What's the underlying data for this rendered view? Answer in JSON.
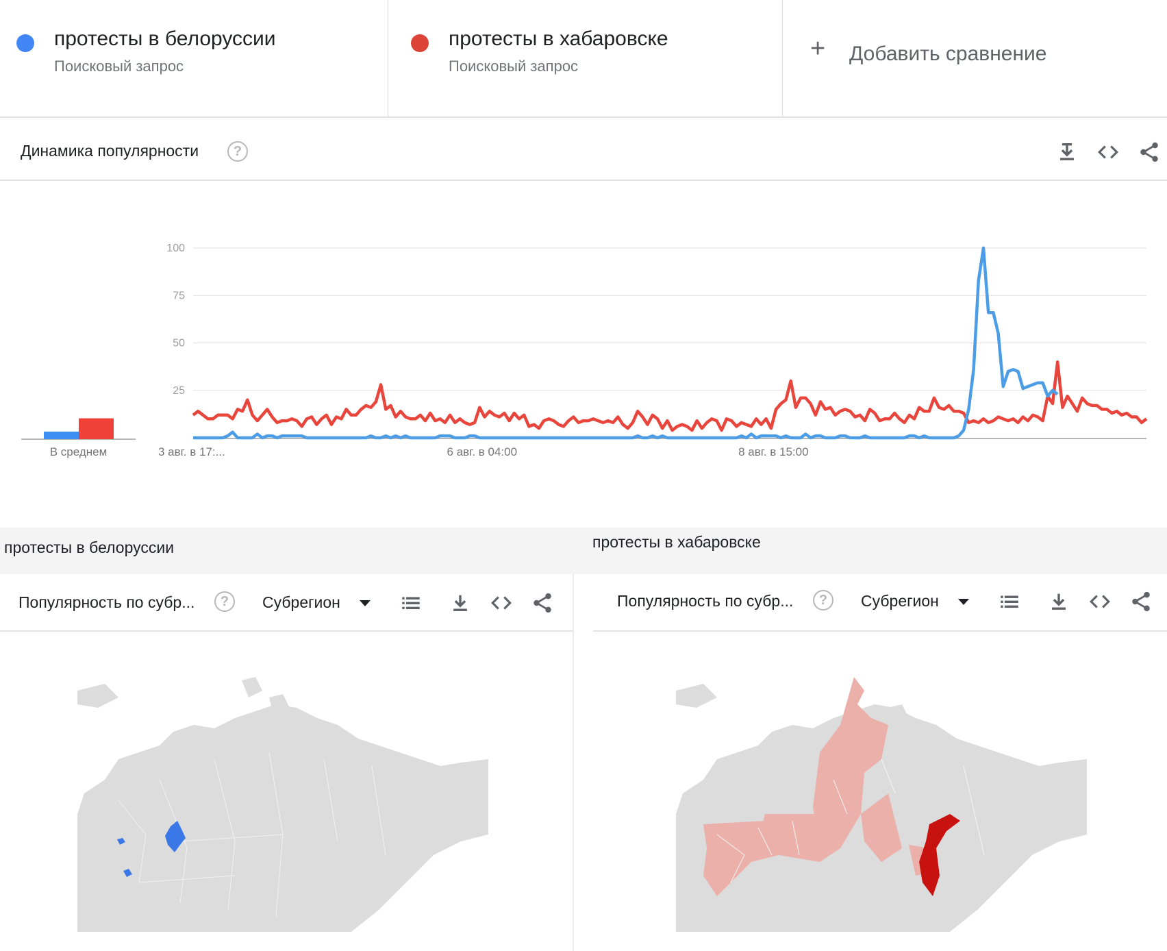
{
  "terms": [
    {
      "name": "протесты в белоруссии",
      "kind": "Поисковый запрос",
      "color": "#4285f4"
    },
    {
      "name": "протесты в хабаровске",
      "kind": "Поисковый запрос",
      "color": "#db4437"
    }
  ],
  "add_comparison": {
    "plus": "+",
    "label": "Добавить сравнение"
  },
  "trend_card": {
    "title": "Динамика популярности",
    "help": "?",
    "avg_label": "В среднем"
  },
  "icons": {
    "download": "download-icon",
    "embed": "embed-code-icon",
    "share": "share-icon",
    "list": "list-icon",
    "help": "help-icon"
  },
  "chart_data": {
    "type": "line",
    "title": "Динамика популярности",
    "ylim": [
      0,
      100
    ],
    "yticks": [
      25,
      50,
      75,
      100
    ],
    "x_tick_labels": [
      {
        "index": 0,
        "label": "3 авг. в 17:..."
      },
      {
        "index": 59,
        "label": "6 авг. в 04:00"
      },
      {
        "index": 118,
        "label": "8 авг. в 15:00"
      }
    ],
    "averages": [
      {
        "name": "протесты в белоруссии",
        "value": 4
      },
      {
        "name": "протесты в хабаровске",
        "value": 11
      }
    ],
    "series": [
      {
        "name": "протесты в белоруссии",
        "color": "#4d9de6",
        "values": [
          0,
          0,
          0,
          0,
          0,
          0,
          0,
          1,
          3,
          0,
          0,
          0,
          0,
          2,
          0,
          1,
          1,
          0,
          1,
          1,
          1,
          1,
          1,
          0,
          0,
          0,
          0,
          0,
          0,
          0,
          0,
          0,
          0,
          0,
          0,
          0,
          1,
          0,
          0,
          1,
          0,
          1,
          0,
          1,
          0,
          0,
          0,
          0,
          0,
          0,
          1,
          1,
          1,
          0,
          0,
          0,
          1,
          1,
          0,
          0,
          0,
          0,
          0,
          0,
          0,
          0,
          0,
          0,
          0,
          0,
          0,
          0,
          0,
          0,
          0,
          0,
          0,
          0,
          0,
          0,
          0,
          0,
          0,
          0,
          0,
          0,
          0,
          0,
          0,
          0,
          1,
          0,
          0,
          1,
          0,
          1,
          0,
          0,
          0,
          0,
          0,
          0,
          0,
          0,
          0,
          0,
          0,
          0,
          0,
          0,
          0,
          1,
          0,
          2,
          0,
          1,
          1,
          1,
          1,
          0,
          1,
          0,
          0,
          0,
          2,
          0,
          1,
          1,
          0,
          0,
          0,
          1,
          1,
          0,
          0,
          0,
          1,
          0,
          0,
          0,
          0,
          0,
          0,
          0,
          0,
          1,
          1,
          0,
          1,
          0,
          0,
          0,
          0,
          0,
          0,
          1,
          4,
          15,
          36,
          83,
          100,
          66,
          66,
          55,
          27,
          35,
          36,
          35,
          26,
          27,
          28,
          29,
          29,
          22,
          25,
          23
        ]
      },
      {
        "name": "протесты в хабаровске",
        "color": "#e8453c",
        "values": [
          12,
          14,
          12,
          10,
          10,
          12,
          12,
          12,
          10,
          15,
          14,
          20,
          12,
          9,
          12,
          15,
          11,
          8,
          9,
          9,
          10,
          9,
          6,
          10,
          11,
          7,
          10,
          12,
          7,
          11,
          10,
          15,
          12,
          12,
          15,
          17,
          16,
          19,
          28,
          15,
          17,
          11,
          14,
          11,
          10,
          10,
          12,
          9,
          13,
          9,
          10,
          8,
          12,
          8,
          10,
          8,
          7,
          8,
          16,
          11,
          14,
          12,
          11,
          13,
          9,
          13,
          10,
          12,
          6,
          7,
          5,
          9,
          10,
          9,
          7,
          6,
          9,
          11,
          8,
          9,
          9,
          10,
          9,
          8,
          9,
          8,
          11,
          7,
          5,
          8,
          14,
          11,
          7,
          12,
          10,
          5,
          9,
          4,
          6,
          7,
          6,
          4,
          9,
          5,
          8,
          10,
          9,
          4,
          10,
          9,
          6,
          8,
          7,
          6,
          10,
          7,
          10,
          5,
          15,
          18,
          20,
          30,
          16,
          21,
          21,
          18,
          12,
          19,
          15,
          16,
          12,
          14,
          15,
          14,
          11,
          12,
          9,
          15,
          13,
          9,
          10,
          10,
          13,
          10,
          8,
          12,
          10,
          16,
          14,
          14,
          21,
          16,
          15,
          17,
          14,
          14,
          13,
          8,
          9,
          8,
          10,
          8,
          9,
          11,
          10,
          9,
          10,
          8,
          11,
          9,
          12,
          11,
          9,
          22,
          18,
          40,
          16,
          22,
          18,
          14,
          21,
          18,
          17,
          17,
          15,
          15,
          13,
          14,
          12,
          13,
          11,
          11,
          8,
          10
        ],
        "_len_note_hidden": false
      }
    ]
  },
  "maps": [
    {
      "section_title": "протесты в белоруссии",
      "card_title": "Популярность по субр...",
      "dropdown": "Субрегион",
      "color": "#3b78e7"
    },
    {
      "section_title": "протесты в хабаровске",
      "card_title": "Популярность по субр...",
      "dropdown": "Субрегион",
      "color": "#c8120f",
      "light_color": "#ebb0aa"
    }
  ]
}
